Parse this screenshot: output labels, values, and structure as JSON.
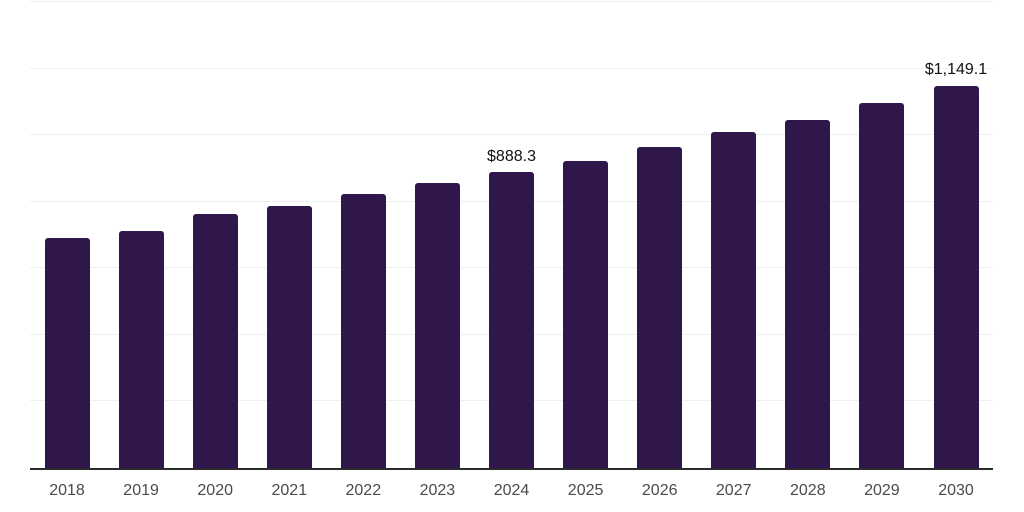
{
  "chart_data": {
    "type": "bar",
    "title": "",
    "xlabel": "",
    "ylabel": "",
    "categories": [
      "2018",
      "2019",
      "2020",
      "2021",
      "2022",
      "2023",
      "2024",
      "2025",
      "2026",
      "2027",
      "2028",
      "2029",
      "2030"
    ],
    "values": [
      692,
      712,
      763,
      786,
      823,
      856,
      888.3,
      922,
      963,
      1008,
      1047,
      1098,
      1149.1
    ],
    "annotations": [
      {
        "category": "2024",
        "text": "$888.3"
      },
      {
        "category": "2030",
        "text": "$1,149.1"
      }
    ],
    "ylim": [
      0,
      1400
    ],
    "grid_step": 200,
    "grid": "horizontal",
    "y_tick_labels_visible": false,
    "legend": "none"
  },
  "colors": {
    "background": "#ffffff",
    "bar": "#2f164b",
    "gridline": "#efefef",
    "axis_line": "#2b2b2b",
    "tick_label": "#4a4a4a",
    "data_label": "#111111"
  }
}
